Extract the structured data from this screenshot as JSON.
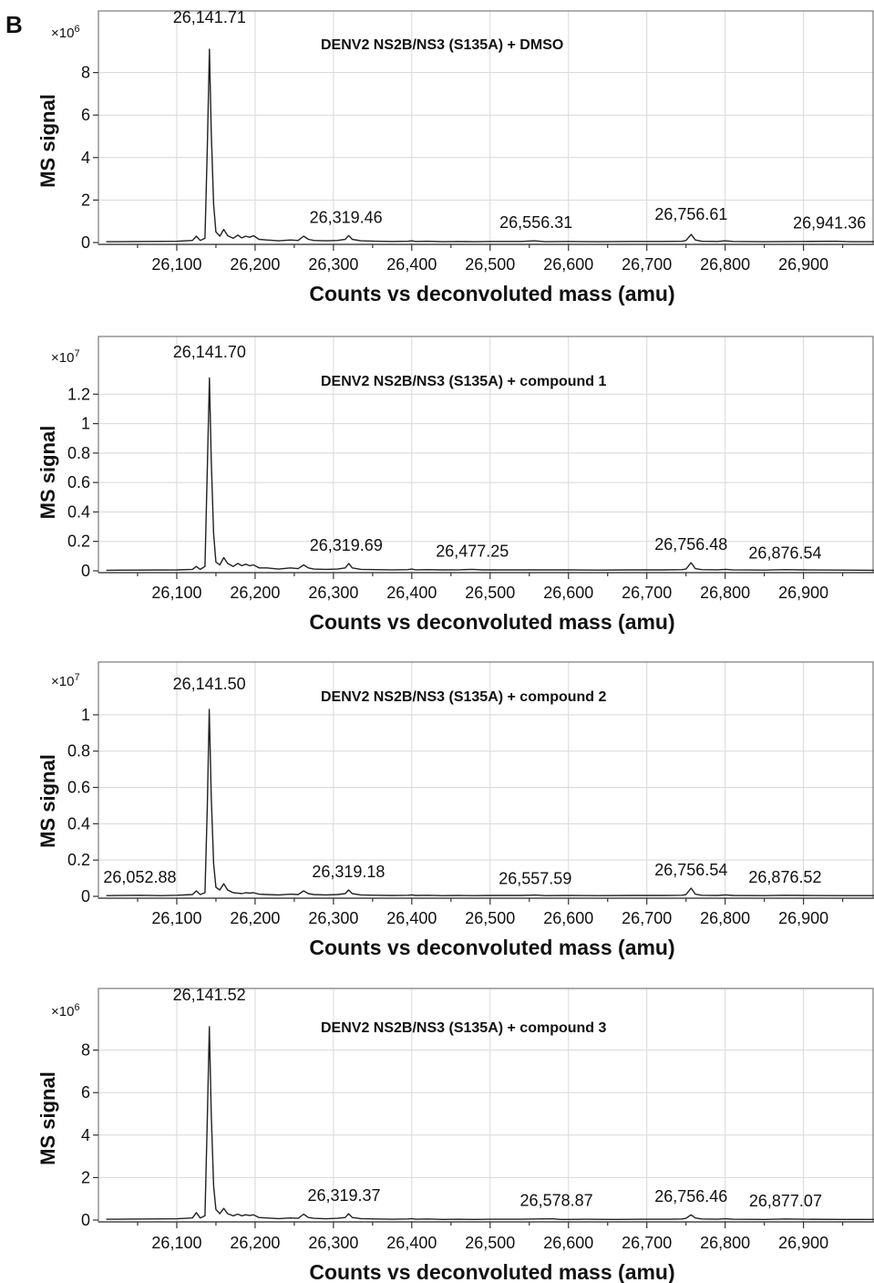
{
  "panel_letter": "B",
  "chart_data": [
    {
      "type": "line",
      "title": "DENV2 NS2B/NS3 (S135A) + DMSO",
      "xlabel": "Counts vs deconvoluted mass (amu)",
      "ylabel": "MS signal",
      "multiplier_base": "×10",
      "multiplier_exp": "6",
      "xlim": [
        26000,
        26990
      ],
      "ylim": [
        0,
        10
      ],
      "xticks": [
        26100,
        26200,
        26300,
        26400,
        26500,
        26600,
        26700,
        26800,
        26900
      ],
      "xtick_labels": [
        "26,100",
        "26,200",
        "26,300",
        "26,400",
        "26,500",
        "26,600",
        "26,700",
        "26,800",
        "26,900"
      ],
      "yticks": [
        0,
        2,
        4,
        6,
        8
      ],
      "ytick_labels": [
        "0",
        "2",
        "4",
        "6",
        "8"
      ],
      "x": [
        26010,
        26100,
        26120,
        26125,
        26130,
        26136,
        26139,
        26141.71,
        26144,
        26147,
        26150,
        26155,
        26160,
        26165,
        26172,
        26178,
        26183,
        26188,
        26193,
        26198,
        26205,
        26215,
        26230,
        26245,
        26255,
        26262,
        26268,
        26275,
        26290,
        26305,
        26315,
        26319.46,
        26324,
        26335,
        26355,
        26375,
        26395,
        26400,
        26405,
        26420,
        26440,
        26460,
        26480,
        26500,
        26540,
        26556.31,
        26570,
        26600,
        26640,
        26680,
        26720,
        26745,
        26750,
        26756.61,
        26762,
        26770,
        26790,
        26800,
        26810,
        26850,
        26900,
        26941.36,
        26960,
        26990
      ],
      "y": [
        0.04,
        0.06,
        0.1,
        0.3,
        0.1,
        0.2,
        4.5,
        9.1,
        5.2,
        1.8,
        0.5,
        0.3,
        0.62,
        0.32,
        0.2,
        0.35,
        0.22,
        0.3,
        0.25,
        0.32,
        0.15,
        0.12,
        0.08,
        0.12,
        0.1,
        0.3,
        0.15,
        0.1,
        0.08,
        0.1,
        0.15,
        0.33,
        0.15,
        0.08,
        0.06,
        0.05,
        0.06,
        0.08,
        0.05,
        0.06,
        0.04,
        0.05,
        0.04,
        0.05,
        0.05,
        0.08,
        0.04,
        0.05,
        0.04,
        0.05,
        0.05,
        0.06,
        0.1,
        0.38,
        0.12,
        0.06,
        0.05,
        0.08,
        0.05,
        0.04,
        0.05,
        0.06,
        0.04,
        0.04
      ],
      "annotations": [
        {
          "text": "26,141.71",
          "x": 26141.71,
          "y": 9.1
        },
        {
          "text": "26,319.46",
          "x": 26319.46,
          "y": 0.33
        },
        {
          "text": "26,556.31",
          "x": 26556.31,
          "y": 0.08
        },
        {
          "text": "26,756.61",
          "x": 26756.61,
          "y": 0.38
        },
        {
          "text": "26,941.36",
          "x": 26941.36,
          "y": 0.06
        }
      ]
    },
    {
      "type": "line",
      "title": "DENV2 NS2B/NS3 (S135A) + compound 1",
      "xlabel": "Counts vs deconvoluted mass (amu)",
      "ylabel": "MS signal",
      "multiplier_base": "×10",
      "multiplier_exp": "7",
      "xlim": [
        26000,
        26990
      ],
      "ylim": [
        0,
        1.4
      ],
      "xticks": [
        26100,
        26200,
        26300,
        26400,
        26500,
        26600,
        26700,
        26800,
        26900
      ],
      "xtick_labels": [
        "26,100",
        "26,200",
        "26,300",
        "26,400",
        "26,500",
        "26,600",
        "26,700",
        "26,800",
        "26,900"
      ],
      "yticks": [
        0,
        0.2,
        0.4,
        0.6,
        0.8,
        1,
        1.2
      ],
      "ytick_labels": [
        "0",
        "0.2",
        "0.4",
        "0.6",
        "0.8",
        "1",
        "1.2"
      ],
      "x": [
        26010,
        26100,
        26120,
        26125,
        26130,
        26136,
        26139,
        26141.7,
        26144,
        26147,
        26150,
        26155,
        26160,
        26165,
        26172,
        26178,
        26183,
        26188,
        26193,
        26198,
        26205,
        26215,
        26230,
        26245,
        26255,
        26262,
        26268,
        26275,
        26290,
        26305,
        26315,
        26319.69,
        26324,
        26335,
        26355,
        26375,
        26395,
        26400,
        26405,
        26420,
        26440,
        26460,
        26477.25,
        26490,
        26520,
        26560,
        26600,
        26640,
        26680,
        26720,
        26745,
        26750,
        26756.48,
        26762,
        26770,
        26790,
        26800,
        26810,
        26850,
        26876.54,
        26900,
        26950,
        26990
      ],
      "y": [
        0.004,
        0.006,
        0.01,
        0.03,
        0.01,
        0.03,
        0.7,
        1.31,
        0.75,
        0.25,
        0.06,
        0.04,
        0.09,
        0.05,
        0.03,
        0.05,
        0.035,
        0.045,
        0.035,
        0.04,
        0.02,
        0.02,
        0.012,
        0.02,
        0.015,
        0.04,
        0.02,
        0.012,
        0.01,
        0.012,
        0.02,
        0.05,
        0.02,
        0.01,
        0.008,
        0.007,
        0.008,
        0.012,
        0.007,
        0.008,
        0.006,
        0.007,
        0.01,
        0.006,
        0.006,
        0.006,
        0.006,
        0.005,
        0.006,
        0.006,
        0.008,
        0.012,
        0.055,
        0.015,
        0.008,
        0.007,
        0.01,
        0.007,
        0.005,
        0.008,
        0.006,
        0.005,
        0.004
      ],
      "annotations": [
        {
          "text": "26,141.70",
          "x": 26141.7,
          "y": 1.31
        },
        {
          "text": "26,319.69",
          "x": 26319.69,
          "y": 0.05
        },
        {
          "text": "26,477.25",
          "x": 26477.25,
          "y": 0.01
        },
        {
          "text": "26,756.48",
          "x": 26756.48,
          "y": 0.055
        },
        {
          "text": "26,876.54",
          "x": 26876.54,
          "y": 0.008
        }
      ]
    },
    {
      "type": "line",
      "title": "DENV2 NS2B/NS3 (S135A) + compound 2",
      "xlabel": "Counts vs deconvoluted mass (amu)",
      "ylabel": "MS signal",
      "multiplier_base": "×10",
      "multiplier_exp": "7",
      "xlim": [
        26000,
        26990
      ],
      "ylim": [
        0,
        1.1
      ],
      "xticks": [
        26100,
        26200,
        26300,
        26400,
        26500,
        26600,
        26700,
        26800,
        26900
      ],
      "xtick_labels": [
        "26,100",
        "26,200",
        "26,300",
        "26,400",
        "26,500",
        "26,600",
        "26,700",
        "26,800",
        "26,900"
      ],
      "yticks": [
        0,
        0.2,
        0.4,
        0.6,
        0.8,
        1
      ],
      "ytick_labels": [
        "0",
        "0.2",
        "0.4",
        "0.6",
        "0.8",
        "1"
      ],
      "x": [
        26010,
        26052.88,
        26080,
        26100,
        26120,
        26125,
        26130,
        26136,
        26139,
        26141.5,
        26144,
        26147,
        26150,
        26155,
        26160,
        26165,
        26172,
        26178,
        26183,
        26188,
        26193,
        26198,
        26205,
        26215,
        26230,
        26245,
        26255,
        26262,
        26268,
        26275,
        26290,
        26305,
        26315,
        26319.18,
        26324,
        26335,
        26355,
        26375,
        26395,
        26400,
        26405,
        26420,
        26440,
        26460,
        26480,
        26500,
        26540,
        26557.59,
        26570,
        26600,
        26640,
        26680,
        26720,
        26745,
        26750,
        26756.54,
        26762,
        26770,
        26790,
        26800,
        26810,
        26850,
        26876.52,
        26900,
        26950,
        26990
      ],
      "y": [
        0.004,
        0.006,
        0.004,
        0.006,
        0.01,
        0.03,
        0.01,
        0.02,
        0.5,
        1.03,
        0.55,
        0.18,
        0.05,
        0.035,
        0.07,
        0.035,
        0.02,
        0.018,
        0.015,
        0.02,
        0.018,
        0.02,
        0.012,
        0.01,
        0.008,
        0.012,
        0.01,
        0.03,
        0.015,
        0.01,
        0.008,
        0.01,
        0.015,
        0.035,
        0.015,
        0.008,
        0.006,
        0.005,
        0.006,
        0.008,
        0.005,
        0.006,
        0.004,
        0.005,
        0.004,
        0.005,
        0.005,
        0.007,
        0.004,
        0.005,
        0.004,
        0.005,
        0.005,
        0.006,
        0.01,
        0.045,
        0.012,
        0.006,
        0.005,
        0.008,
        0.005,
        0.004,
        0.006,
        0.005,
        0.004,
        0.004
      ],
      "annotations": [
        {
          "text": "26,141.50",
          "x": 26141.5,
          "y": 1.03
        },
        {
          "text": "26,052.88",
          "x": 26052.88,
          "y": 0.006
        },
        {
          "text": "26,319.18",
          "x": 26319.18,
          "y": 0.035
        },
        {
          "text": "26,557.59",
          "x": 26557.59,
          "y": 0.007
        },
        {
          "text": "26,756.54",
          "x": 26756.54,
          "y": 0.045
        },
        {
          "text": "26,876.52",
          "x": 26876.52,
          "y": 0.006
        }
      ]
    },
    {
      "type": "line",
      "title": "DENV2 NS2B/NS3 (S135A) + compound 3",
      "xlabel": "Counts vs deconvoluted mass (amu)",
      "ylabel": "MS signal",
      "multiplier_base": "×10",
      "multiplier_exp": "6",
      "xlim": [
        26000,
        26990
      ],
      "ylim": [
        0,
        10
      ],
      "xticks": [
        26100,
        26200,
        26300,
        26400,
        26500,
        26600,
        26700,
        26800,
        26900
      ],
      "xtick_labels": [
        "26,100",
        "26,200",
        "26,300",
        "26,400",
        "26,500",
        "26,600",
        "26,700",
        "26,800",
        "26,900"
      ],
      "yticks": [
        0,
        2,
        4,
        6,
        8
      ],
      "ytick_labels": [
        "0",
        "2",
        "4",
        "6",
        "8"
      ],
      "x": [
        26010,
        26100,
        26120,
        26125,
        26130,
        26136,
        26139,
        26141.52,
        26144,
        26147,
        26150,
        26155,
        26160,
        26165,
        26172,
        26178,
        26183,
        26188,
        26193,
        26198,
        26205,
        26215,
        26230,
        26245,
        26255,
        26262,
        26268,
        26275,
        26290,
        26305,
        26315,
        26319.37,
        26324,
        26335,
        26355,
        26375,
        26395,
        26400,
        26405,
        26420,
        26440,
        26460,
        26480,
        26500,
        26540,
        26578.87,
        26590,
        26620,
        26660,
        26700,
        26730,
        26745,
        26750,
        26756.46,
        26762,
        26770,
        26790,
        26800,
        26810,
        26850,
        26877.07,
        26900,
        26950,
        26990
      ],
      "y": [
        0.04,
        0.06,
        0.1,
        0.35,
        0.1,
        0.2,
        4.8,
        9.1,
        5.0,
        1.6,
        0.5,
        0.3,
        0.55,
        0.3,
        0.2,
        0.28,
        0.2,
        0.25,
        0.22,
        0.25,
        0.12,
        0.1,
        0.07,
        0.1,
        0.08,
        0.28,
        0.12,
        0.08,
        0.06,
        0.08,
        0.12,
        0.3,
        0.12,
        0.07,
        0.05,
        0.04,
        0.05,
        0.07,
        0.04,
        0.05,
        0.03,
        0.04,
        0.03,
        0.04,
        0.04,
        0.06,
        0.03,
        0.04,
        0.03,
        0.04,
        0.04,
        0.05,
        0.08,
        0.25,
        0.1,
        0.05,
        0.04,
        0.06,
        0.04,
        0.03,
        0.05,
        0.04,
        0.03,
        0.03
      ],
      "annotations": [
        {
          "text": "26,141.52",
          "x": 26141.52,
          "y": 9.1
        },
        {
          "text": "26,319.37",
          "x": 26319.37,
          "y": 0.3
        },
        {
          "text": "26,578.87",
          "x": 26578.87,
          "y": 0.06
        },
        {
          "text": "26,756.46",
          "x": 26756.46,
          "y": 0.25
        },
        {
          "text": "26,877.07",
          "x": 26877.07,
          "y": 0.05
        }
      ]
    }
  ]
}
